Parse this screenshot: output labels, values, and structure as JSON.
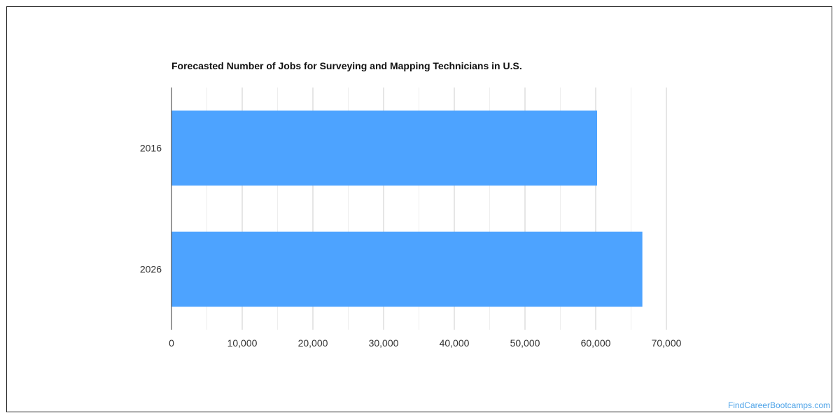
{
  "chart_data": {
    "type": "bar",
    "orientation": "horizontal",
    "title": "Forecasted Number of Jobs for Surveying and Mapping Technicians in U.S.",
    "categories": [
      "2016",
      "2026"
    ],
    "values": [
      60200,
      66600
    ],
    "xlim": [
      0,
      70000
    ],
    "xticks": [
      0,
      10000,
      20000,
      30000,
      40000,
      50000,
      60000,
      70000
    ],
    "xtick_labels": [
      "0",
      "10,000",
      "20,000",
      "30,000",
      "40,000",
      "50,000",
      "60,000",
      "70,000"
    ],
    "grid": true,
    "legend": "none",
    "bar_color": "#4da3ff"
  },
  "watermark": {
    "text": "FindCareerBootcamps.com",
    "color": "#4da3e8"
  }
}
